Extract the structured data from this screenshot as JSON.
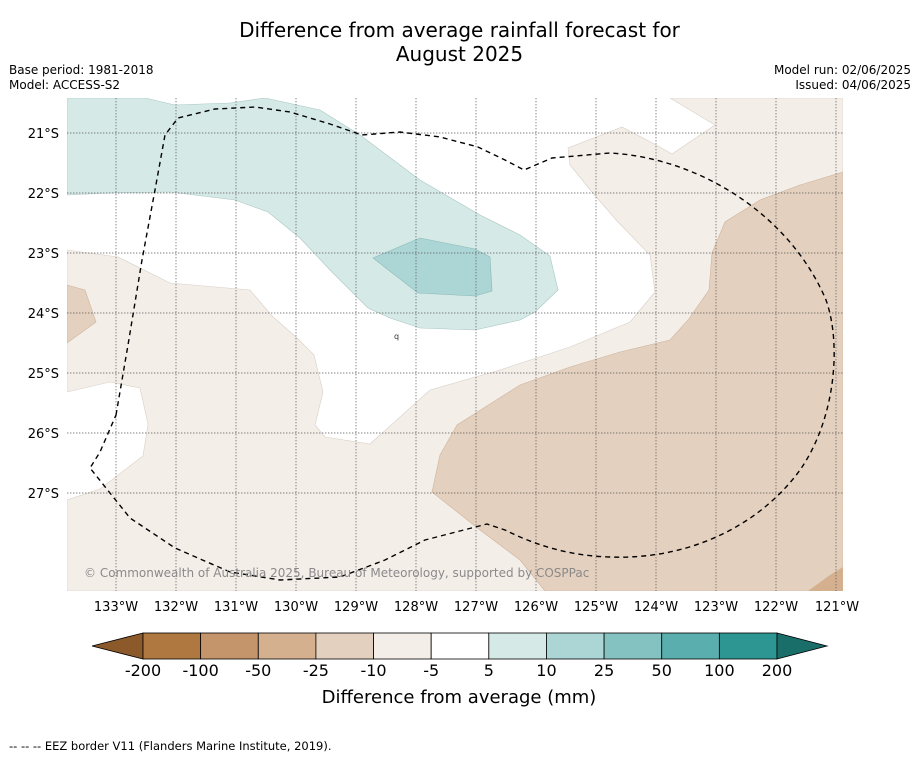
{
  "title_line1": "Difference from average rainfall forecast for",
  "title_line2": "August 2025",
  "base_period": "Base period: 1981-2018",
  "model": "Model: ACCESS-S2",
  "model_run": "Model run: 02/06/2025",
  "issued": "Issued: 04/06/2025",
  "copyright": "© Commonwealth of Australia 2025, Bureau of Meteorology, supported by COSPPac",
  "footnote": "--  --  -- EEZ border V11 (Flanders Marine Institute, 2019).",
  "map": {
    "lat_labels": [
      "21°S",
      "22°S",
      "23°S",
      "24°S",
      "25°S",
      "26°S",
      "27°S"
    ],
    "lon_labels": [
      "133°W",
      "132°W",
      "131°W",
      "130°W",
      "129°W",
      "128°W",
      "127°W",
      "126°W",
      "125°W",
      "124°W",
      "123°W",
      "122°W",
      "121°W"
    ],
    "grid": true
  },
  "colorbar": {
    "label": "Difference from average (mm)",
    "ticks": [
      "-200",
      "-100",
      "-50",
      "-25",
      "-10",
      "-5",
      "5",
      "10",
      "25",
      "50",
      "100",
      "200"
    ],
    "colors": [
      "#8c5a2a",
      "#af7840",
      "#c4956b",
      "#d4b08f",
      "#e4d0be",
      "#f4eee9",
      "#ffffff",
      "#d5e9e7",
      "#abd6d5",
      "#84c2c1",
      "#5aaead",
      "#2e9692",
      "#1a6e6a"
    ],
    "extend": "both"
  }
}
